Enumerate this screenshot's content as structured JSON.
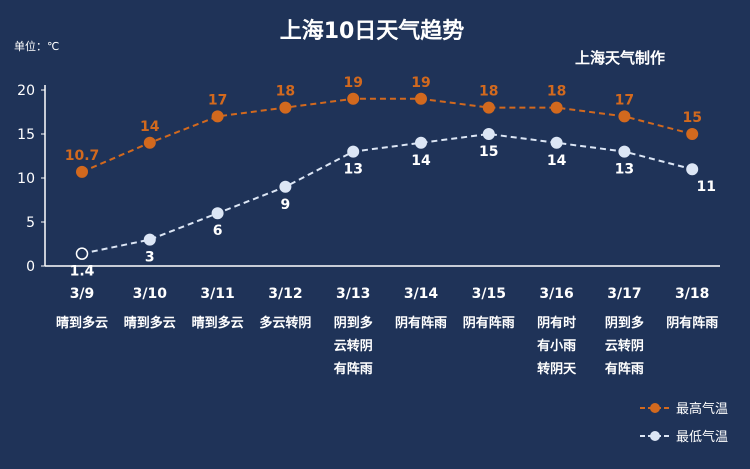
{
  "chart_data": {
    "type": "line",
    "title": "上海10日天气趋势",
    "source_note": "上海天气制作",
    "unit_label": "单位：℃",
    "categories": [
      "3/9",
      "3/10",
      "3/11",
      "3/12",
      "3/13",
      "3/14",
      "3/15",
      "3/16",
      "3/17",
      "3/18"
    ],
    "weather": [
      [
        "晴到多云"
      ],
      [
        "晴到多云"
      ],
      [
        "晴到多云"
      ],
      [
        "多云转阴"
      ],
      [
        "阴到多",
        "云转阴",
        "有阵雨"
      ],
      [
        "阴有阵雨"
      ],
      [
        "阴有阵雨"
      ],
      [
        "阴有时",
        "有小雨",
        "转阴天"
      ],
      [
        "阴到多",
        "云转阴",
        "有阵雨"
      ],
      [
        "阴有阵雨"
      ]
    ],
    "ylim": [
      0,
      20
    ],
    "yticks": [
      0,
      5,
      10,
      15,
      20
    ],
    "grid": false,
    "legend_position": "bottom-right",
    "series": [
      {
        "name": "最高气温",
        "color": "#d2691e",
        "values": [
          10.7,
          14,
          17,
          18,
          19,
          19,
          18,
          18,
          17,
          15
        ],
        "labels": [
          "10.7",
          "14",
          "17",
          "18",
          "19",
          "19",
          "18",
          "18",
          "17",
          "15"
        ]
      },
      {
        "name": "最低气温",
        "color": "#dce6f5",
        "values": [
          1.4,
          3,
          6,
          9,
          13,
          14,
          15,
          14,
          13,
          11
        ],
        "labels": [
          "1.4",
          "3",
          "6",
          "9",
          "13",
          "14",
          "15",
          "14",
          "13",
          "11"
        ]
      }
    ]
  }
}
